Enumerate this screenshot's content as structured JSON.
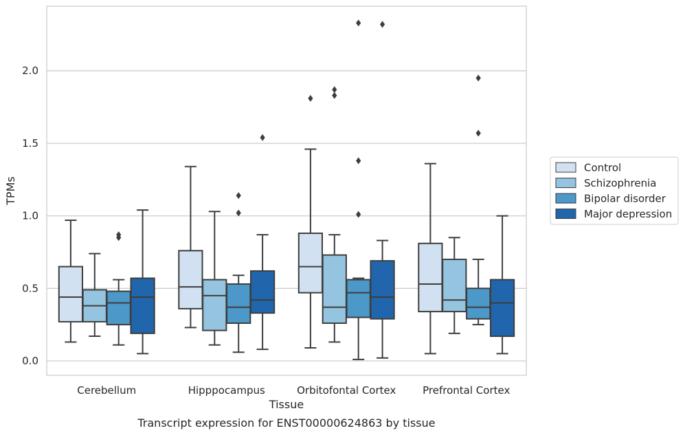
{
  "chart_data": {
    "type": "box",
    "caption": "Transcript expression for ENST00000624863 by tissue",
    "xlabel": "Tissue",
    "ylabel": "TPMs",
    "ylim": [
      -0.1,
      2.45
    ],
    "yticks": [
      0.0,
      0.5,
      1.0,
      1.5,
      2.0
    ],
    "ytick_labels": [
      "0.0",
      "0.5",
      "1.0",
      "1.5",
      "2.0"
    ],
    "grid": "horizontal",
    "legend_position": "right",
    "categories": [
      "Cerebellum",
      "Hipppocampus",
      "Orbitofontal Cortex",
      "Prefrontal Cortex"
    ],
    "series": [
      {
        "name": "Control",
        "color": "#d1e1f1",
        "boxes": [
          {
            "whisker_low": 0.13,
            "q1": 0.27,
            "median": 0.44,
            "q3": 0.65,
            "whisker_high": 0.97,
            "outliers": []
          },
          {
            "whisker_low": 0.23,
            "q1": 0.36,
            "median": 0.51,
            "q3": 0.76,
            "whisker_high": 1.34,
            "outliers": []
          },
          {
            "whisker_low": 0.09,
            "q1": 0.47,
            "median": 0.65,
            "q3": 0.88,
            "whisker_high": 1.46,
            "outliers": [
              1.81
            ]
          },
          {
            "whisker_low": 0.05,
            "q1": 0.34,
            "median": 0.53,
            "q3": 0.81,
            "whisker_high": 1.36,
            "outliers": []
          }
        ]
      },
      {
        "name": "Schizophrenia",
        "color": "#94c4df",
        "boxes": [
          {
            "whisker_low": 0.17,
            "q1": 0.27,
            "median": 0.38,
            "q3": 0.49,
            "whisker_high": 0.74,
            "outliers": []
          },
          {
            "whisker_low": 0.11,
            "q1": 0.21,
            "median": 0.45,
            "q3": 0.56,
            "whisker_high": 1.03,
            "outliers": []
          },
          {
            "whisker_low": 0.13,
            "q1": 0.26,
            "median": 0.37,
            "q3": 0.73,
            "whisker_high": 0.87,
            "outliers": [
              1.83,
              1.87
            ]
          },
          {
            "whisker_low": 0.19,
            "q1": 0.34,
            "median": 0.42,
            "q3": 0.7,
            "whisker_high": 0.85,
            "outliers": []
          }
        ]
      },
      {
        "name": "Bipolar disorder",
        "color": "#4b98c9",
        "boxes": [
          {
            "whisker_low": 0.11,
            "q1": 0.25,
            "median": 0.4,
            "q3": 0.48,
            "whisker_high": 0.56,
            "outliers": [
              0.85,
              0.87
            ]
          },
          {
            "whisker_low": 0.06,
            "q1": 0.26,
            "median": 0.37,
            "q3": 0.53,
            "whisker_high": 0.59,
            "outliers": [
              1.02,
              1.14
            ]
          },
          {
            "whisker_low": 0.01,
            "q1": 0.3,
            "median": 0.47,
            "q3": 0.56,
            "whisker_high": 0.57,
            "outliers": [
              1.01,
              1.38,
              2.33
            ]
          },
          {
            "whisker_low": 0.25,
            "q1": 0.29,
            "median": 0.37,
            "q3": 0.5,
            "whisker_high": 0.7,
            "outliers": [
              1.57,
              1.95
            ]
          }
        ]
      },
      {
        "name": "Major depression",
        "color": "#2166ac",
        "boxes": [
          {
            "whisker_low": 0.05,
            "q1": 0.19,
            "median": 0.44,
            "q3": 0.57,
            "whisker_high": 1.04,
            "outliers": []
          },
          {
            "whisker_low": 0.08,
            "q1": 0.33,
            "median": 0.42,
            "q3": 0.62,
            "whisker_high": 0.87,
            "outliers": [
              1.54
            ]
          },
          {
            "whisker_low": 0.02,
            "q1": 0.29,
            "median": 0.44,
            "q3": 0.69,
            "whisker_high": 0.83,
            "outliers": [
              2.32
            ]
          },
          {
            "whisker_low": 0.05,
            "q1": 0.17,
            "median": 0.4,
            "q3": 0.56,
            "whisker_high": 1.0,
            "outliers": []
          }
        ]
      }
    ]
  }
}
